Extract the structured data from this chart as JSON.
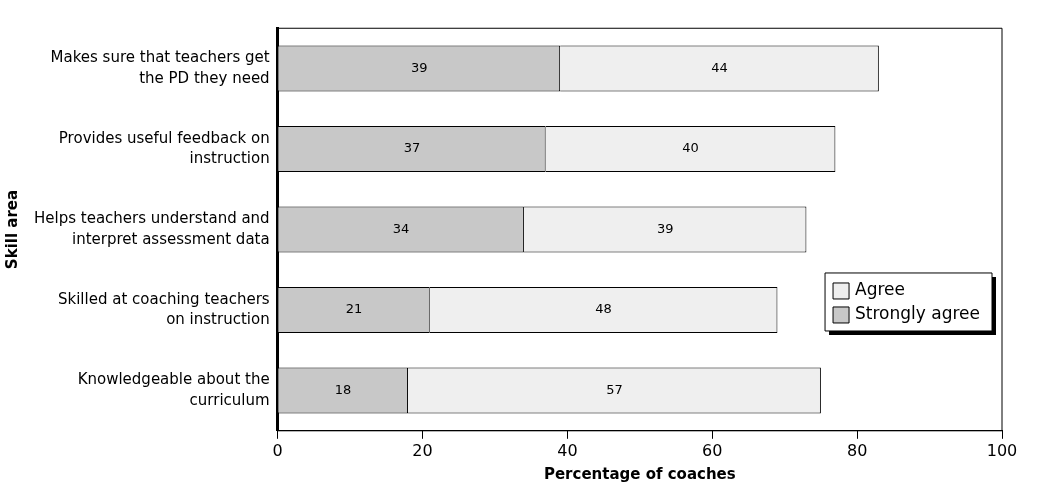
{
  "chart_data": {
    "type": "bar",
    "orientation": "horizontal",
    "stacked": true,
    "xlabel": "Percentage of coaches",
    "ylabel": "Skill area",
    "categories": [
      "Makes sure that teachers get the PD they need",
      "Provides useful feedback on instruction",
      "Helps teachers understand and interpret assessment data",
      "Skilled at coaching teachers on instruction",
      "Knowledgeable about the curriculum"
    ],
    "series": [
      {
        "name": "Strongly agree",
        "color": "#c8c8c8",
        "values": [
          39,
          37,
          34,
          21,
          18
        ]
      },
      {
        "name": "Agree",
        "color": "#efefef",
        "values": [
          44,
          40,
          39,
          48,
          57
        ]
      }
    ],
    "xlim": [
      0,
      100
    ],
    "xticks": [
      0,
      20,
      40,
      60,
      80,
      100
    ],
    "grid": false,
    "legend": "right",
    "data_labels": true
  }
}
